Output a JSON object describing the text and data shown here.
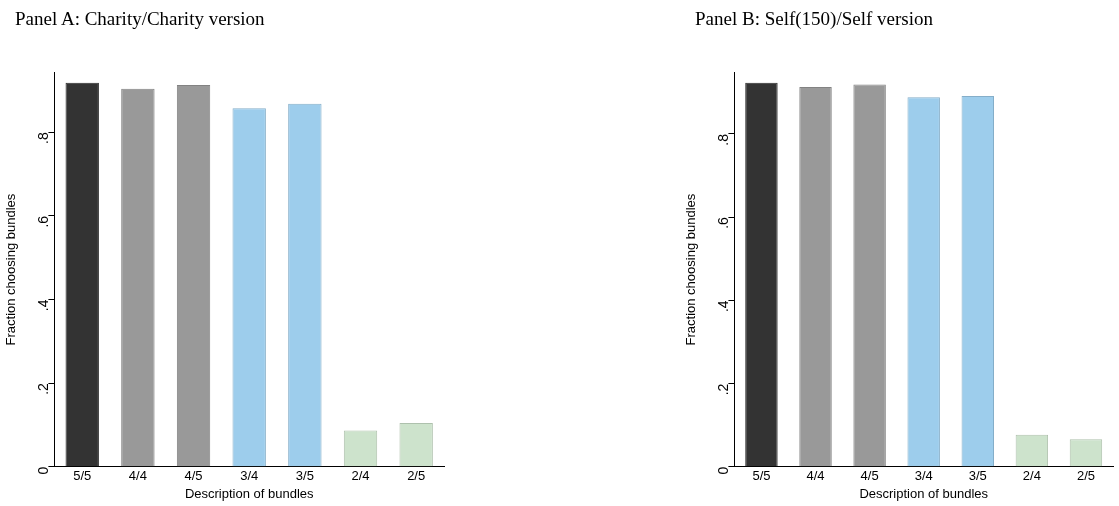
{
  "chart_data": [
    {
      "type": "bar",
      "title": "Panel A: Charity/Charity version",
      "xlabel": "Description of bundles",
      "ylabel": "Fraction choosing bundles",
      "categories": [
        "5/5",
        "4/4",
        "4/5",
        "3/4",
        "3/5",
        "2/4",
        "2/5"
      ],
      "values": [
        0.918,
        0.904,
        0.913,
        0.857,
        0.868,
        0.087,
        0.105
      ],
      "colors": [
        "#333333",
        "#999999",
        "#999999",
        "#9dcdec",
        "#9dcdec",
        "#cde3cc",
        "#cde3cc"
      ],
      "ylim": [
        0,
        0.943
      ],
      "yticks": [
        0,
        {
          "value": 0.2,
          "label": ".2"
        },
        {
          "value": 0.4,
          "label": ".4"
        },
        {
          "value": 0.6,
          "label": ".6"
        },
        {
          "value": 0.8,
          "label": ".8"
        }
      ],
      "grid": false,
      "legend": false
    },
    {
      "type": "bar",
      "title": "Panel B: Self(150)/Self version",
      "xlabel": "Description of bundles",
      "ylabel": "Fraction choosing bundles",
      "categories": [
        "5/5",
        "4/4",
        "4/5",
        "3/4",
        "3/5",
        "2/4",
        "2/5"
      ],
      "values": [
        0.923,
        0.913,
        0.919,
        0.888,
        0.891,
        0.077,
        0.066
      ],
      "colors": [
        "#333333",
        "#999999",
        "#999999",
        "#9dcdec",
        "#9dcdec",
        "#cde3cc",
        "#cde3cc"
      ],
      "ylim": [
        0,
        0.948
      ],
      "yticks": [
        0,
        {
          "value": 0.2,
          "label": ".2"
        },
        {
          "value": 0.4,
          "label": ".4"
        },
        {
          "value": 0.6,
          "label": ".6"
        },
        {
          "value": 0.8,
          "label": ".8"
        }
      ],
      "grid": false,
      "legend": false
    }
  ]
}
